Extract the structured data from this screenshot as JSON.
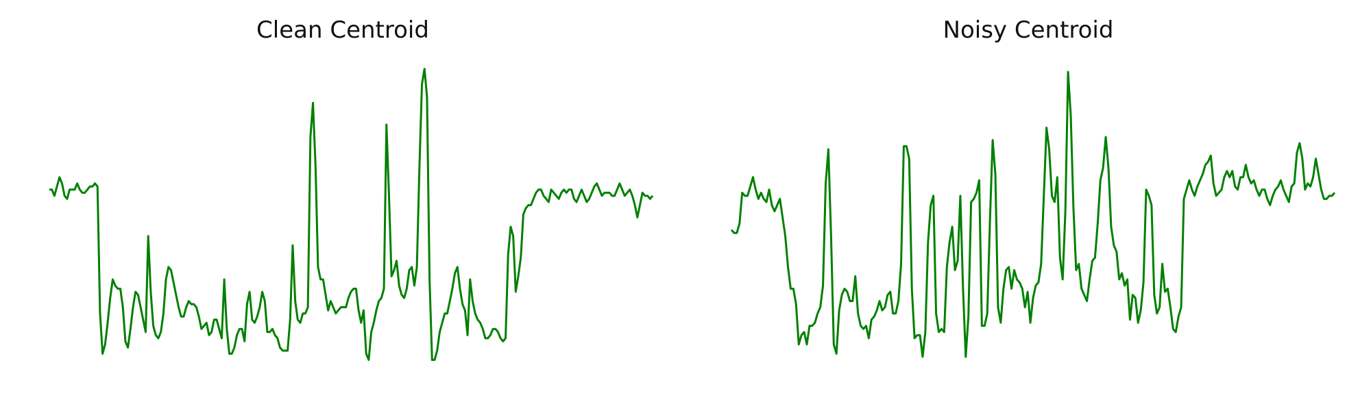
{
  "chart_data": [
    {
      "type": "line",
      "title": "Clean Centroid",
      "xlabel": "",
      "ylabel": "",
      "grid": false,
      "axes_visible": false,
      "line_color": "#008000",
      "ylim": [
        0,
        1
      ],
      "series": [
        {
          "values": [
            0.6,
            0.6,
            0.58,
            0.61,
            0.64,
            0.62,
            0.58,
            0.57,
            0.6,
            0.6,
            0.6,
            0.62,
            0.6,
            0.59,
            0.59,
            0.6,
            0.61,
            0.61,
            0.62,
            0.61,
            0.2,
            0.07,
            0.1,
            0.17,
            0.25,
            0.31,
            0.29,
            0.28,
            0.28,
            0.22,
            0.11,
            0.09,
            0.15,
            0.22,
            0.27,
            0.26,
            0.22,
            0.18,
            0.14,
            0.45,
            0.27,
            0.16,
            0.13,
            0.12,
            0.14,
            0.2,
            0.31,
            0.35,
            0.34,
            0.3,
            0.26,
            0.22,
            0.19,
            0.19,
            0.22,
            0.24,
            0.23,
            0.23,
            0.22,
            0.19,
            0.15,
            0.16,
            0.17,
            0.13,
            0.14,
            0.18,
            0.18,
            0.15,
            0.12,
            0.31,
            0.15,
            0.07,
            0.07,
            0.09,
            0.13,
            0.15,
            0.15,
            0.11,
            0.23,
            0.27,
            0.18,
            0.17,
            0.19,
            0.22,
            0.27,
            0.24,
            0.14,
            0.14,
            0.15,
            0.13,
            0.12,
            0.09,
            0.08,
            0.08,
            0.08,
            0.18,
            0.42,
            0.24,
            0.18,
            0.17,
            0.2,
            0.2,
            0.22,
            0.77,
            0.88,
            0.68,
            0.35,
            0.31,
            0.31,
            0.26,
            0.21,
            0.24,
            0.22,
            0.2,
            0.21,
            0.22,
            0.22,
            0.22,
            0.25,
            0.27,
            0.28,
            0.28,
            0.21,
            0.17,
            0.21,
            0.07,
            0.05,
            0.14,
            0.17,
            0.21,
            0.24,
            0.25,
            0.28,
            0.81,
            0.58,
            0.32,
            0.34,
            0.37,
            0.29,
            0.26,
            0.25,
            0.28,
            0.34,
            0.35,
            0.29,
            0.35,
            0.67,
            0.94,
            0.99,
            0.9,
            0.31,
            0.05,
            0.05,
            0.08,
            0.14,
            0.17,
            0.2,
            0.2,
            0.24,
            0.28,
            0.33,
            0.35,
            0.28,
            0.23,
            0.21,
            0.13,
            0.31,
            0.24,
            0.2,
            0.18,
            0.17,
            0.15,
            0.12,
            0.12,
            0.13,
            0.15,
            0.15,
            0.14,
            0.12,
            0.11,
            0.12,
            0.39,
            0.48,
            0.45,
            0.27,
            0.32,
            0.38,
            0.52,
            0.54,
            0.55,
            0.55,
            0.57,
            0.59,
            0.6,
            0.6,
            0.58,
            0.57,
            0.56,
            0.6,
            0.59,
            0.58,
            0.57,
            0.59,
            0.6,
            0.59,
            0.6,
            0.6,
            0.57,
            0.56,
            0.58,
            0.6,
            0.58,
            0.56,
            0.57,
            0.59,
            0.61,
            0.62,
            0.6,
            0.58,
            0.59,
            0.59,
            0.59,
            0.58,
            0.58,
            0.6,
            0.62,
            0.6,
            0.58,
            0.59,
            0.6,
            0.58,
            0.55,
            0.51,
            0.55,
            0.59,
            0.58,
            0.58,
            0.57,
            0.58
          ]
        }
      ]
    },
    {
      "type": "line",
      "title": "Noisy Centroid",
      "xlabel": "",
      "ylabel": "",
      "grid": false,
      "axes_visible": false,
      "line_color": "#008000",
      "ylim": [
        0,
        1
      ],
      "series": [
        {
          "values": [
            0.47,
            0.46,
            0.46,
            0.49,
            0.59,
            0.58,
            0.58,
            0.61,
            0.64,
            0.6,
            0.57,
            0.59,
            0.57,
            0.56,
            0.6,
            0.55,
            0.53,
            0.55,
            0.57,
            0.51,
            0.45,
            0.35,
            0.28,
            0.28,
            0.23,
            0.1,
            0.13,
            0.14,
            0.1,
            0.16,
            0.16,
            0.17,
            0.2,
            0.22,
            0.29,
            0.62,
            0.73,
            0.45,
            0.1,
            0.07,
            0.21,
            0.26,
            0.28,
            0.27,
            0.24,
            0.24,
            0.32,
            0.2,
            0.16,
            0.15,
            0.16,
            0.12,
            0.18,
            0.19,
            0.21,
            0.24,
            0.21,
            0.22,
            0.26,
            0.27,
            0.2,
            0.2,
            0.24,
            0.36,
            0.74,
            0.74,
            0.7,
            0.28,
            0.12,
            0.13,
            0.13,
            0.06,
            0.14,
            0.43,
            0.55,
            0.58,
            0.2,
            0.14,
            0.15,
            0.14,
            0.35,
            0.43,
            0.48,
            0.34,
            0.37,
            0.58,
            0.28,
            0.06,
            0.19,
            0.56,
            0.57,
            0.59,
            0.63,
            0.16,
            0.16,
            0.2,
            0.5,
            0.76,
            0.65,
            0.22,
            0.17,
            0.28,
            0.34,
            0.35,
            0.28,
            0.34,
            0.31,
            0.3,
            0.28,
            0.22,
            0.27,
            0.17,
            0.25,
            0.29,
            0.3,
            0.36,
            0.58,
            0.8,
            0.73,
            0.58,
            0.56,
            0.64,
            0.38,
            0.31,
            0.53,
            0.98,
            0.84,
            0.54,
            0.34,
            0.36,
            0.28,
            0.26,
            0.24,
            0.31,
            0.37,
            0.38,
            0.49,
            0.63,
            0.67,
            0.77,
            0.67,
            0.48,
            0.42,
            0.4,
            0.31,
            0.33,
            0.29,
            0.31,
            0.18,
            0.26,
            0.25,
            0.17,
            0.21,
            0.3,
            0.6,
            0.58,
            0.55,
            0.26,
            0.2,
            0.22,
            0.36,
            0.27,
            0.28,
            0.22,
            0.15,
            0.14,
            0.19,
            0.22,
            0.57,
            0.6,
            0.63,
            0.6,
            0.58,
            0.61,
            0.63,
            0.65,
            0.68,
            0.69,
            0.71,
            0.62,
            0.58,
            0.59,
            0.6,
            0.64,
            0.66,
            0.64,
            0.66,
            0.61,
            0.6,
            0.64,
            0.64,
            0.68,
            0.64,
            0.62,
            0.63,
            0.6,
            0.58,
            0.6,
            0.6,
            0.57,
            0.55,
            0.58,
            0.6,
            0.61,
            0.63,
            0.6,
            0.58,
            0.56,
            0.61,
            0.62,
            0.72,
            0.75,
            0.7,
            0.6,
            0.62,
            0.61,
            0.64,
            0.7,
            0.65,
            0.6,
            0.57,
            0.57,
            0.58,
            0.58,
            0.59
          ]
        }
      ]
    }
  ]
}
